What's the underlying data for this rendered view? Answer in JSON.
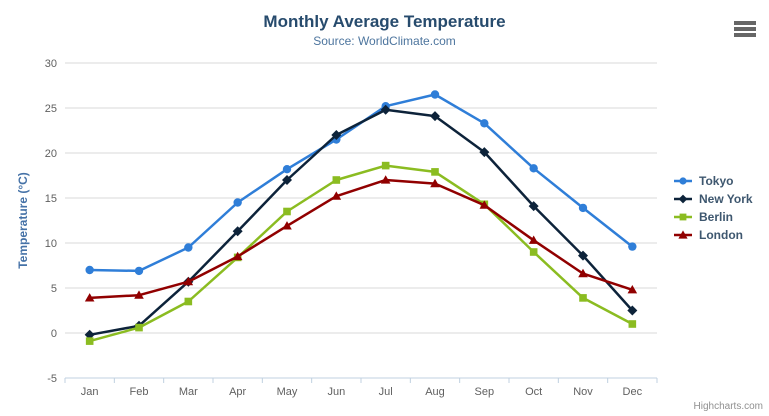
{
  "header": {
    "title": "Monthly Average Temperature",
    "subtitle": "Source: WorldClimate.com"
  },
  "credits": {
    "text": "Highcharts.com"
  },
  "icons": {
    "context_menu_icon": "hamburger-bars"
  },
  "chart_data": {
    "type": "line",
    "title": "Monthly Average Temperature",
    "subtitle": "Source: WorldClimate.com",
    "categories": [
      "Jan",
      "Feb",
      "Mar",
      "Apr",
      "May",
      "Jun",
      "Jul",
      "Aug",
      "Sep",
      "Oct",
      "Nov",
      "Dec"
    ],
    "series": [
      {
        "name": "Tokyo",
        "color": "#2f7ed8",
        "marker": "circle",
        "values": [
          7.0,
          6.9,
          9.5,
          14.5,
          18.2,
          21.5,
          25.2,
          26.5,
          23.3,
          18.3,
          13.9,
          9.6
        ]
      },
      {
        "name": "New York",
        "color": "#0d233a",
        "marker": "diamond",
        "values": [
          -0.2,
          0.8,
          5.7,
          11.3,
          17.0,
          22.0,
          24.8,
          24.1,
          20.1,
          14.1,
          8.6,
          2.5
        ]
      },
      {
        "name": "Berlin",
        "color": "#8bbc21",
        "marker": "square",
        "values": [
          -0.9,
          0.6,
          3.5,
          8.4,
          13.5,
          17.0,
          18.6,
          17.9,
          14.3,
          9.0,
          3.9,
          1.0
        ]
      },
      {
        "name": "London",
        "color": "#910000",
        "marker": "triangle",
        "values": [
          3.9,
          4.2,
          5.7,
          8.5,
          11.9,
          15.2,
          17.0,
          16.6,
          14.2,
          10.3,
          6.6,
          4.8
        ]
      }
    ],
    "xlabel": "",
    "ylabel": "Temperature (°C)",
    "ylim": [
      -5,
      30
    ],
    "ytick_step": 5,
    "grid": true,
    "legend_position": "right",
    "grid_color": "#D8D8D8",
    "axis_line_color": "#C0D0E0",
    "axis_label_color": "#606060",
    "ylabel_color": "#4572a7"
  }
}
